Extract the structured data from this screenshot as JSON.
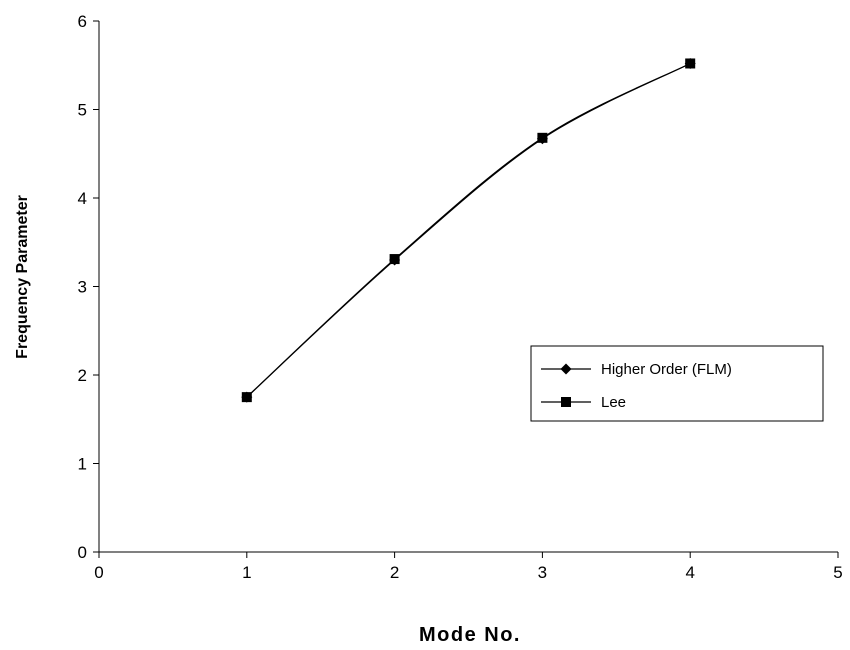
{
  "chart_data": {
    "type": "line",
    "title": "",
    "xlabel": "Mode No.",
    "ylabel": "Frequency Parameter",
    "xlim": [
      0,
      5
    ],
    "ylim": [
      0,
      6
    ],
    "xticks": [
      "0",
      "1",
      "2",
      "3",
      "4",
      "5"
    ],
    "yticks": [
      "0",
      "1",
      "2",
      "3",
      "4",
      "5",
      "6"
    ],
    "grid": false,
    "legend_position": "right",
    "series": [
      {
        "name": "Higher Order (FLM)",
        "marker": "diamond",
        "color": "#000000",
        "x": [
          1,
          2,
          3,
          4
        ],
        "y": [
          1.75,
          3.3,
          4.67,
          5.52
        ]
      },
      {
        "name": "Lee",
        "marker": "square",
        "color": "#000000",
        "x": [
          1,
          2,
          3,
          4
        ],
        "y": [
          1.75,
          3.31,
          4.68,
          5.52
        ]
      }
    ]
  }
}
